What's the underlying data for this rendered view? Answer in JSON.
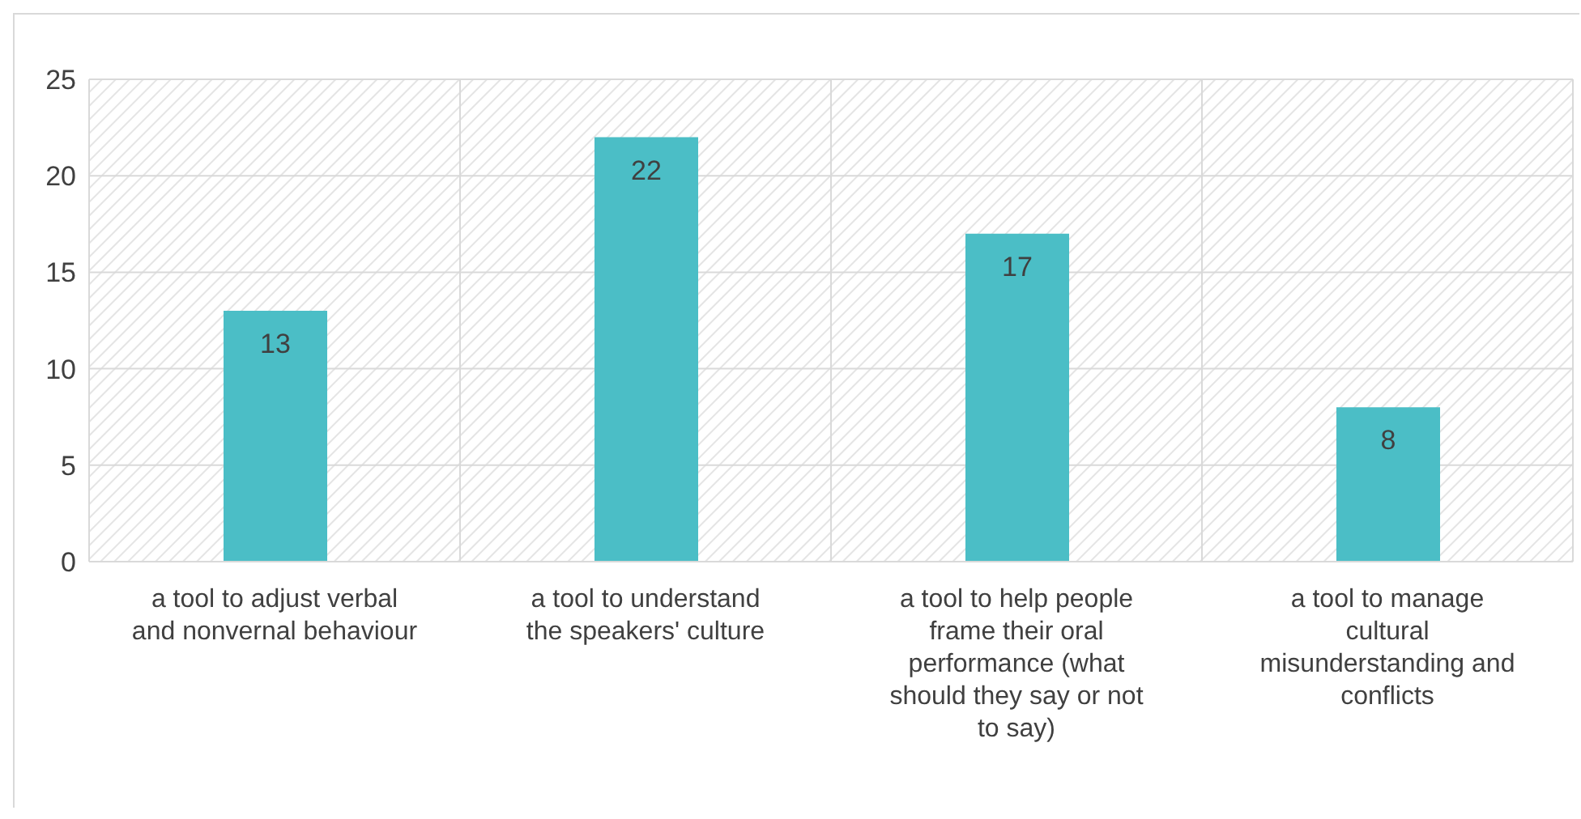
{
  "chart_data": {
    "type": "bar",
    "categories": [
      "a tool to adjust verbal and nonvernal behaviour",
      "a tool to understand the speakers' culture",
      "a tool to help people frame their oral performance (what should they say or not to say)",
      "a tool to manage cultural misunderstanding and conflicts"
    ],
    "values": [
      13,
      22,
      17,
      8
    ],
    "color": "#4bbec6",
    "ylim": [
      0,
      25
    ],
    "yticks": [
      0,
      5,
      10,
      15,
      20,
      25
    ],
    "grid": true,
    "data_labels": true
  }
}
